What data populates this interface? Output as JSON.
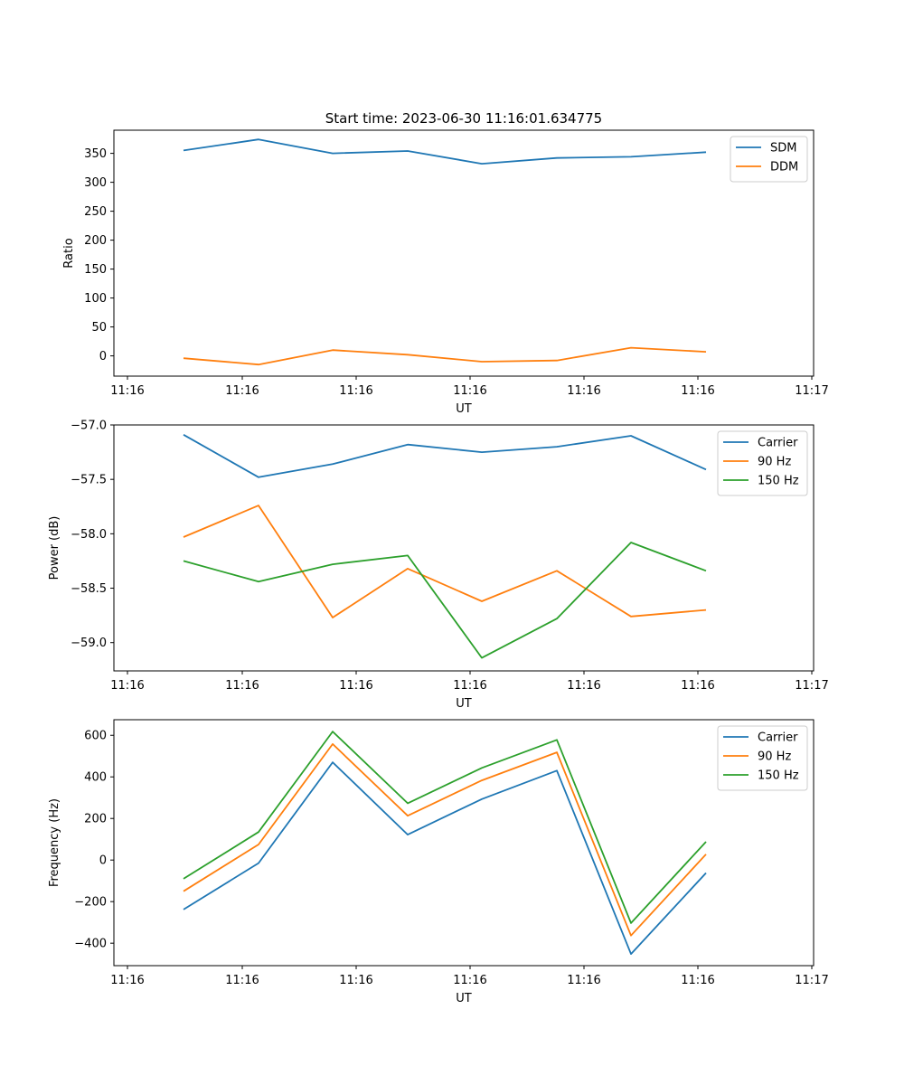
{
  "figure": {
    "title": "Start time: 2023-06-30 11:16:01.634775"
  },
  "chart_data": [
    {
      "type": "line",
      "title": "Start time: 2023-06-30 11:16:01.634775",
      "xlabel": "UT",
      "ylabel": "Ratio",
      "x_tick_labels": [
        "11:16",
        "11:16",
        "11:16",
        "11:16",
        "11:16",
        "11:16",
        "11:16",
        "11:17"
      ],
      "y_ticks": [
        0,
        50,
        100,
        150,
        200,
        250,
        300,
        350
      ],
      "ylim": [
        -35,
        390
      ],
      "legend_position": "top-right",
      "series": [
        {
          "name": "SDM",
          "color": "#1f77b4",
          "values": [
            355,
            374,
            350,
            354,
            332,
            342,
            344,
            352
          ]
        },
        {
          "name": "DDM",
          "color": "#ff7f0e",
          "values": [
            -4,
            -15,
            10,
            2,
            -10,
            -8,
            14,
            7
          ]
        }
      ]
    },
    {
      "type": "line",
      "title": "",
      "xlabel": "UT",
      "ylabel": "Power (dB)",
      "x_tick_labels": [
        "11:16",
        "11:16",
        "11:16",
        "11:16",
        "11:16",
        "11:16",
        "11:16",
        "11:17"
      ],
      "y_ticks": [
        -59.0,
        -58.5,
        -58.0,
        -57.5,
        -57.0
      ],
      "y_tick_labels": [
        "−59.0",
        "−58.5",
        "−58.0",
        "−57.5",
        "−57.0"
      ],
      "ylim": [
        -59.26,
        -57.0
      ],
      "legend_position": "top-right",
      "series": [
        {
          "name": "Carrier",
          "color": "#1f77b4",
          "values": [
            -57.09,
            -57.48,
            -57.36,
            -57.18,
            -57.25,
            -57.2,
            -57.1,
            -57.41
          ]
        },
        {
          "name": "90 Hz",
          "color": "#ff7f0e",
          "values": [
            -58.03,
            -57.74,
            -58.77,
            -58.32,
            -58.62,
            -58.34,
            -58.76,
            -58.7
          ]
        },
        {
          "name": "150 Hz",
          "color": "#2ca02c",
          "values": [
            -58.25,
            -58.44,
            -58.28,
            -58.2,
            -59.14,
            -58.78,
            -58.08,
            -58.34
          ]
        }
      ]
    },
    {
      "type": "line",
      "title": "",
      "xlabel": "UT",
      "ylabel": "Frequency (Hz)",
      "x_tick_labels": [
        "11:16",
        "11:16",
        "11:16",
        "11:16",
        "11:16",
        "11:16",
        "11:16",
        "11:17"
      ],
      "y_ticks": [
        -400,
        -200,
        0,
        200,
        400,
        600
      ],
      "y_tick_labels": [
        "−400",
        "−200",
        "0",
        "200",
        "400",
        "600"
      ],
      "ylim": [
        -508,
        675
      ],
      "legend_position": "top-right",
      "series": [
        {
          "name": "Carrier",
          "color": "#1f77b4",
          "values": [
            -238,
            -15,
            470,
            122,
            293,
            430,
            -452,
            -62
          ]
        },
        {
          "name": "90 Hz",
          "color": "#ff7f0e",
          "values": [
            -150,
            75,
            558,
            213,
            383,
            518,
            -363,
            28
          ]
        },
        {
          "name": "150 Hz",
          "color": "#2ca02c",
          "values": [
            -90,
            135,
            618,
            273,
            443,
            578,
            -303,
            88
          ]
        }
      ]
    }
  ]
}
